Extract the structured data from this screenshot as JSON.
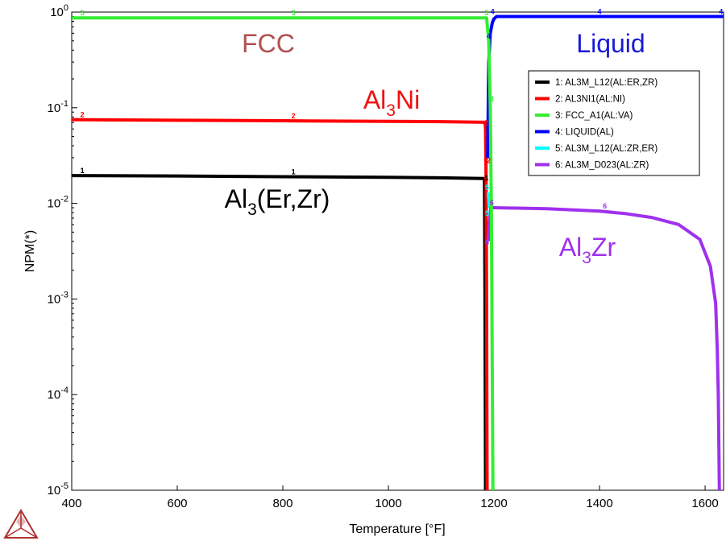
{
  "chart_data": {
    "type": "line",
    "xlabel": "Temperature [°F]",
    "ylabel": "NPM(*)",
    "xlim": [
      400,
      1635
    ],
    "ylim": [
      1e-05,
      1
    ],
    "yscale": "log",
    "x_ticks": [
      "400",
      "600",
      "800",
      "1000",
      "1200",
      "1400",
      "1600"
    ],
    "y_ticks": [
      {
        "base": "10",
        "exp": "0"
      },
      {
        "base": "10",
        "exp": "-1"
      },
      {
        "base": "10",
        "exp": "-2"
      },
      {
        "base": "10",
        "exp": "-3"
      },
      {
        "base": "10",
        "exp": "-4"
      },
      {
        "base": "10",
        "exp": "-5"
      }
    ],
    "legend_position": "top-right",
    "series": [
      {
        "name": "1: AL3M_L12(AL:ER,ZR)",
        "marker": "1",
        "color": "#000000",
        "x": [
          400,
          600,
          800,
          1000,
          1100,
          1182,
          1183,
          1184
        ],
        "y": [
          0.0195,
          0.0193,
          0.019,
          0.0187,
          0.0185,
          0.0182,
          0.001,
          1e-05
        ]
      },
      {
        "name": "2: AL3NI1(AL:NI)",
        "marker": "2",
        "color": "#ff0000",
        "x": [
          400,
          600,
          800,
          1000,
          1100,
          1183,
          1184,
          1185,
          1186,
          1187
        ],
        "y": [
          0.075,
          0.074,
          0.073,
          0.072,
          0.0715,
          0.0705,
          0.06,
          0.02,
          0.001,
          1e-05
        ]
      },
      {
        "name": "3: FCC_A1(AL:VA)",
        "marker": "3",
        "color": "#33ee33",
        "x": [
          400,
          600,
          800,
          1000,
          1100,
          1186,
          1190,
          1193,
          1195,
          1197,
          1198
        ],
        "y": [
          0.87,
          0.87,
          0.87,
          0.87,
          0.87,
          0.87,
          0.5,
          0.1,
          0.01,
          0.0001,
          1e-05
        ]
      },
      {
        "name": "4: LIQUID(AL)",
        "marker": "4",
        "color": "#0000ff",
        "x": [
          1188,
          1190,
          1193,
          1197,
          1200,
          1205,
          1300,
          1400,
          1500,
          1635
        ],
        "y": [
          0.03,
          0.3,
          0.6,
          0.78,
          0.85,
          0.9,
          0.9,
          0.9,
          0.9,
          0.9
        ]
      },
      {
        "name": "5: AL3M_L12(AL:ZR,ER)",
        "marker": "5",
        "color": "#00ffff",
        "x": [
          1189,
          1190,
          1191
        ],
        "y": [
          0.013,
          0.011,
          0.009
        ]
      },
      {
        "name": "6: AL3M_D023(AL:ZR)",
        "marker": "6",
        "color": "#a030ee",
        "x": [
          1189,
          1191,
          1194,
          1196,
          1200,
          1300,
          1400,
          1450,
          1500,
          1550,
          1590,
          1610,
          1620,
          1623,
          1625,
          1627
        ],
        "y": [
          0.004,
          0.006,
          0.009,
          0.009,
          0.009,
          0.0088,
          0.0083,
          0.0078,
          0.0071,
          0.006,
          0.0042,
          0.0022,
          0.0009,
          0.0003,
          0.0001,
          1e-05
        ]
      }
    ],
    "annotations": [
      {
        "parts": [
          {
            "t": "FCC"
          }
        ],
        "color": "#b05050"
      },
      {
        "parts": [
          {
            "t": "Liquid"
          }
        ],
        "color": "#1a1ad6"
      },
      {
        "parts": [
          {
            "t": "Al"
          },
          {
            "t": "3",
            "sub": true
          },
          {
            "t": "Ni"
          }
        ],
        "color": "#ee1111"
      },
      {
        "parts": [
          {
            "t": "Al"
          },
          {
            "t": "3",
            "sub": true
          },
          {
            "t": "(Er,Zr)"
          }
        ],
        "color": "#000000"
      },
      {
        "parts": [
          {
            "t": "Al"
          },
          {
            "t": "3",
            "sub": true
          },
          {
            "t": "Zr"
          }
        ],
        "color": "#a030ee"
      }
    ]
  },
  "logo": {
    "name": "thermo-calc-logo",
    "color": "#b03030"
  }
}
